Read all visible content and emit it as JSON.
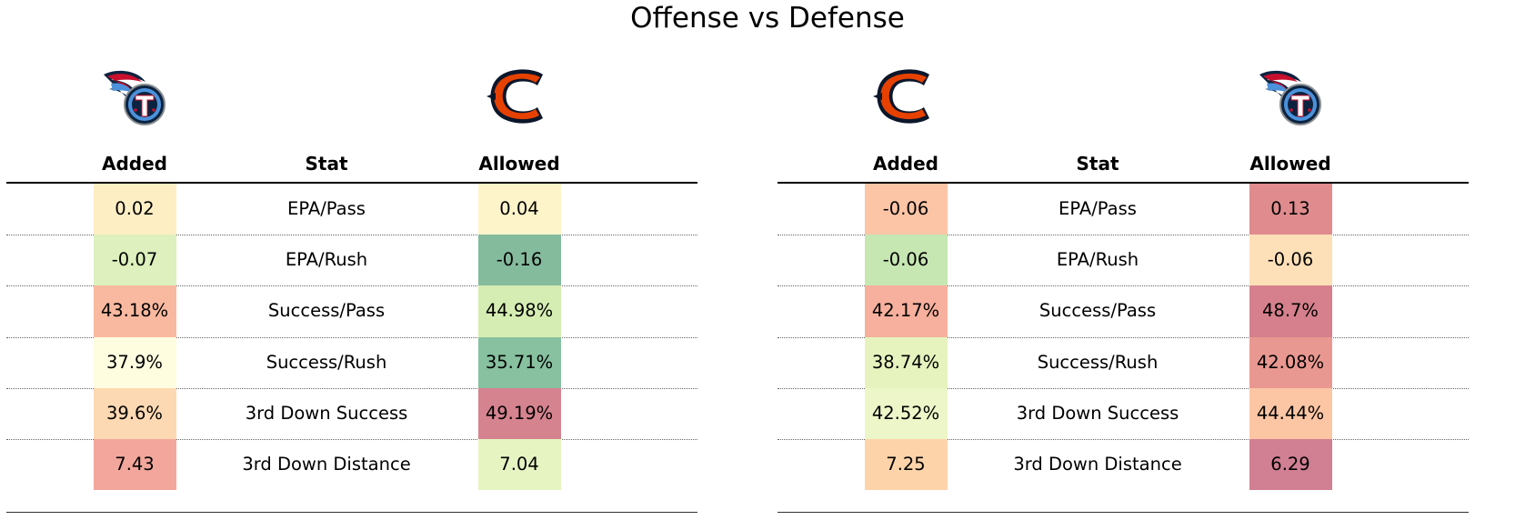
{
  "chart_data": {
    "type": "table",
    "title": "Offense vs Defense",
    "tables": [
      {
        "left_logo": "titans-logo",
        "right_logo": "bears-logo",
        "columns": [
          "Added",
          "Stat",
          "Allowed"
        ],
        "rows": [
          {
            "added": "0.02",
            "stat": "EPA/Pass",
            "allowed": "0.04",
            "added_color": "#feeec4",
            "allowed_color": "#fef4c9"
          },
          {
            "added": "-0.07",
            "stat": "EPA/Rush",
            "allowed": "-0.16",
            "added_color": "#ddf0bd",
            "allowed_color": "#84bb9d"
          },
          {
            "added": "43.18%",
            "stat": "Success/Pass",
            "allowed": "44.98%",
            "added_color": "#f9b9a0",
            "allowed_color": "#d5edb2"
          },
          {
            "added": "37.9%",
            "stat": "Success/Rush",
            "allowed": "35.71%",
            "added_color": "#fefde0",
            "allowed_color": "#87c19f"
          },
          {
            "added": "39.6%",
            "stat": "3rd Down Success",
            "allowed": "49.19%",
            "added_color": "#fdd9b3",
            "allowed_color": "#d68390"
          },
          {
            "added": "7.43",
            "stat": "3rd Down Distance",
            "allowed": "7.04",
            "added_color": "#f2a69c",
            "allowed_color": "#e6f4c2"
          }
        ]
      },
      {
        "left_logo": "bears-logo",
        "right_logo": "titans-logo",
        "columns": [
          "Added",
          "Stat",
          "Allowed"
        ],
        "rows": [
          {
            "added": "-0.06",
            "stat": "EPA/Pass",
            "allowed": "0.13",
            "added_color": "#fcc5a6",
            "allowed_color": "#e08c8f"
          },
          {
            "added": "-0.06",
            "stat": "EPA/Rush",
            "allowed": "-0.06",
            "added_color": "#c6e6b2",
            "allowed_color": "#fee0b8"
          },
          {
            "added": "42.17%",
            "stat": "Success/Pass",
            "allowed": "48.7%",
            "added_color": "#f7b09d",
            "allowed_color": "#d6808d"
          },
          {
            "added": "38.74%",
            "stat": "Success/Rush",
            "allowed": "42.08%",
            "added_color": "#e6f3be",
            "allowed_color": "#e99891"
          },
          {
            "added": "42.52%",
            "stat": "3rd Down Success",
            "allowed": "44.44%",
            "added_color": "#ecf6c8",
            "allowed_color": "#fcc6a4"
          },
          {
            "added": "7.25",
            "stat": "3rd Down Distance",
            "allowed": "6.29",
            "added_color": "#fdd3aa",
            "allowed_color": "#d17f93"
          }
        ]
      }
    ]
  }
}
